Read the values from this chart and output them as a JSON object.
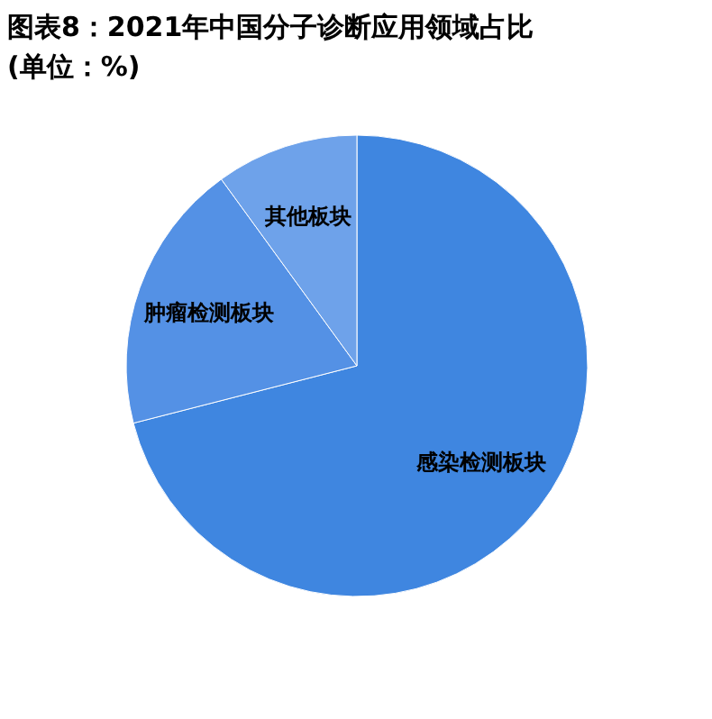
{
  "chart_data": {
    "type": "pie",
    "title": "图表8：2021年中国分子诊断应用领域占比(单位：%)",
    "categories": [
      "感染检测板块",
      "肿瘤检测板块",
      "其他板块"
    ],
    "values": [
      71,
      19,
      10
    ],
    "colors": [
      "#3f86e0",
      "#5491e5",
      "#6ea2ea"
    ]
  }
}
